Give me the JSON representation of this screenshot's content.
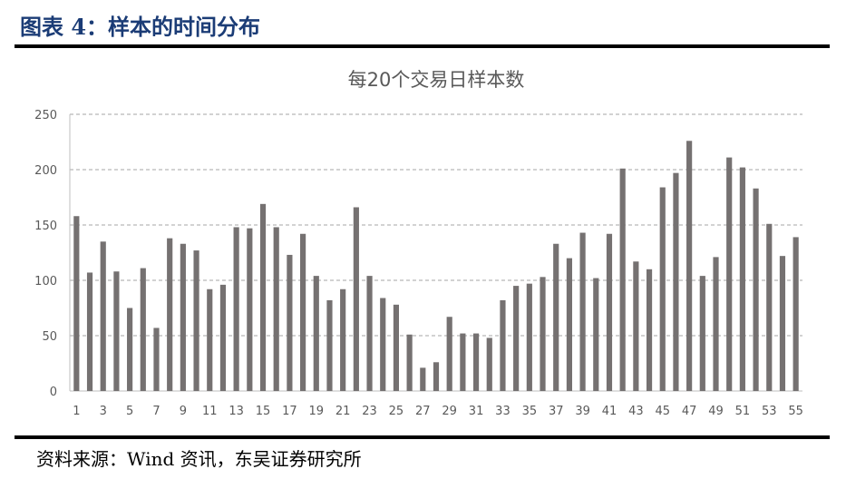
{
  "figure": {
    "caption": "图表 4：样本的时间分布",
    "source": "资料来源：Wind 资讯，东吴证券研究所"
  },
  "chart_data": {
    "type": "bar",
    "title": "每20个交易日样本数",
    "xlabel": "",
    "ylabel": "",
    "ylim": [
      0,
      250
    ],
    "yticks": [
      0,
      50,
      100,
      150,
      200,
      250
    ],
    "grid": true,
    "bar_color": "#757171",
    "categories": [
      "1",
      "2",
      "3",
      "4",
      "5",
      "6",
      "7",
      "8",
      "9",
      "10",
      "11",
      "12",
      "13",
      "14",
      "15",
      "16",
      "17",
      "18",
      "19",
      "20",
      "21",
      "22",
      "23",
      "24",
      "25",
      "26",
      "27",
      "28",
      "29",
      "30",
      "31",
      "32",
      "33",
      "34",
      "35",
      "36",
      "37",
      "38",
      "39",
      "40",
      "41",
      "42",
      "43",
      "44",
      "45",
      "46",
      "47",
      "48",
      "49",
      "50",
      "51",
      "52",
      "53",
      "54",
      "55"
    ],
    "xtick_labels": [
      "1",
      "3",
      "5",
      "7",
      "9",
      "11",
      "13",
      "15",
      "17",
      "19",
      "21",
      "23",
      "25",
      "27",
      "29",
      "31",
      "33",
      "35",
      "37",
      "39",
      "41",
      "43",
      "45",
      "47",
      "49",
      "51",
      "53",
      "55"
    ],
    "values": [
      158,
      107,
      135,
      108,
      75,
      111,
      57,
      138,
      133,
      127,
      92,
      96,
      148,
      147,
      169,
      148,
      123,
      142,
      104,
      82,
      92,
      166,
      104,
      84,
      78,
      51,
      21,
      26,
      67,
      52,
      52,
      48,
      82,
      95,
      97,
      103,
      133,
      120,
      143,
      102,
      142,
      201,
      117,
      110,
      184,
      197,
      226,
      104,
      121,
      211,
      202,
      183,
      151,
      122,
      139
    ]
  }
}
